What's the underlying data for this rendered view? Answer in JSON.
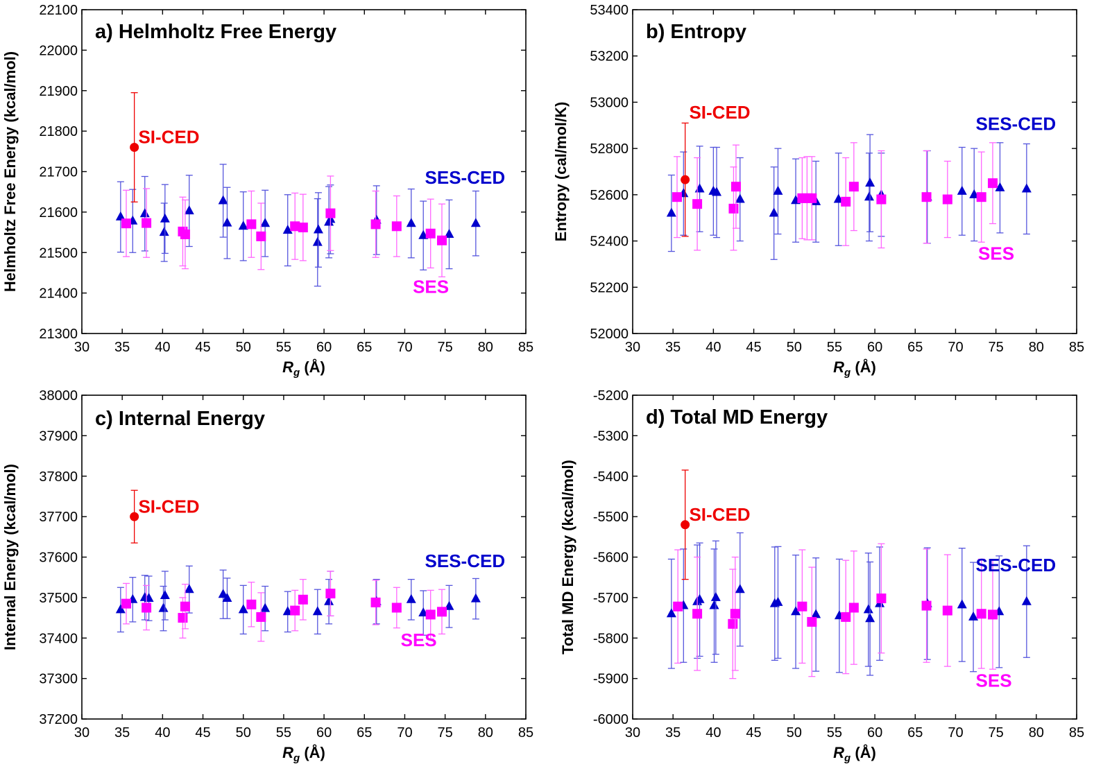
{
  "colors": {
    "sied": "#ee0000",
    "sesced": "#0000cc",
    "ses": "#ff00ff",
    "errSesced": "#5555dd",
    "errSes": "#ff66ff"
  },
  "chart_data": [
    {
      "type": "scatter",
      "title": "a) Helmholtz Free Energy",
      "xlabel_main": "R",
      "xlabel_sub": "g",
      "xlabel_rest": " (Å)",
      "ylabel": "Helmholtz Free Energy (kcal/mol)",
      "xlim": [
        30,
        85
      ],
      "ylim": [
        21300,
        22100
      ],
      "xticks": [
        30,
        35,
        40,
        45,
        50,
        55,
        60,
        65,
        70,
        75,
        80,
        85
      ],
      "yticks": [
        21300,
        21400,
        21500,
        21600,
        21700,
        21800,
        21900,
        22000,
        22100
      ],
      "annotations": [
        {
          "text": "SI-CED",
          "series": "sied",
          "x": 37,
          "y": 21770
        },
        {
          "text": "SES-CED",
          "series": "sesced",
          "x": 72.5,
          "y": 21670
        },
        {
          "text": "SES",
          "series": "ses",
          "x": 71,
          "y": 21400
        }
      ],
      "series": [
        {
          "key": "sied",
          "marker": "circle",
          "points": [
            {
              "x": 36.5,
              "y": 21760,
              "err": 135
            }
          ]
        },
        {
          "key": "sesced",
          "marker": "triangle",
          "points": [
            {
              "x": 34.8,
              "y": 21588,
              "err": 87
            },
            {
              "x": 36.3,
              "y": 21578,
              "err": 78
            },
            {
              "x": 37.8,
              "y": 21596,
              "err": 92
            },
            {
              "x": 40.2,
              "y": 21550,
              "err": 72
            },
            {
              "x": 40.3,
              "y": 21583,
              "err": 85
            },
            {
              "x": 43.3,
              "y": 21603,
              "err": 88
            },
            {
              "x": 47.5,
              "y": 21628,
              "err": 90
            },
            {
              "x": 48,
              "y": 21573,
              "err": 88
            },
            {
              "x": 50,
              "y": 21565,
              "err": 85
            },
            {
              "x": 52.7,
              "y": 21572,
              "err": 82
            },
            {
              "x": 55.5,
              "y": 21555,
              "err": 88
            },
            {
              "x": 59.2,
              "y": 21525,
              "err": 108
            },
            {
              "x": 59.3,
              "y": 21556,
              "err": 92
            },
            {
              "x": 60.6,
              "y": 21575,
              "err": 88
            },
            {
              "x": 60.8,
              "y": 21582,
              "err": 85
            },
            {
              "x": 66.5,
              "y": 21580,
              "err": 85
            },
            {
              "x": 70.8,
              "y": 21572,
              "err": 85
            },
            {
              "x": 72.3,
              "y": 21542,
              "err": 85
            },
            {
              "x": 75.5,
              "y": 21545,
              "err": 85
            },
            {
              "x": 78.8,
              "y": 21572,
              "err": 80
            }
          ]
        },
        {
          "key": "ses",
          "marker": "square",
          "points": [
            {
              "x": 35.5,
              "y": 21572,
              "err": 82
            },
            {
              "x": 38,
              "y": 21573,
              "err": 85
            },
            {
              "x": 42.5,
              "y": 21552,
              "err": 85
            },
            {
              "x": 42.8,
              "y": 21545,
              "err": 85
            },
            {
              "x": 51,
              "y": 21570,
              "err": 82
            },
            {
              "x": 52.2,
              "y": 21540,
              "err": 82
            },
            {
              "x": 56.4,
              "y": 21565,
              "err": 82
            },
            {
              "x": 57.4,
              "y": 21562,
              "err": 82
            },
            {
              "x": 60.8,
              "y": 21597,
              "err": 92
            },
            {
              "x": 66.4,
              "y": 21570,
              "err": 82
            },
            {
              "x": 69,
              "y": 21565,
              "err": 75
            },
            {
              "x": 73.2,
              "y": 21547,
              "err": 85
            },
            {
              "x": 74.6,
              "y": 21530,
              "err": 90
            }
          ]
        }
      ]
    },
    {
      "type": "scatter",
      "title": "b) Entropy",
      "xlabel_main": "R",
      "xlabel_sub": "g",
      "xlabel_rest": " (Å)",
      "ylabel": "Entropy (cal/mol/K)",
      "xlim": [
        30,
        85
      ],
      "ylim": [
        52000,
        53400
      ],
      "xticks": [
        30,
        35,
        40,
        45,
        50,
        55,
        60,
        65,
        70,
        75,
        80,
        85
      ],
      "yticks": [
        52000,
        52200,
        52400,
        52600,
        52800,
        53000,
        53200,
        53400
      ],
      "annotations": [
        {
          "text": "SI-CED",
          "series": "sied",
          "x": 37,
          "y": 52930
        },
        {
          "text": "SES-CED",
          "series": "sesced",
          "x": 72.5,
          "y": 52880
        },
        {
          "text": "SES",
          "series": "ses",
          "x": 72.8,
          "y": 52320
        }
      ],
      "series": [
        {
          "key": "sied",
          "marker": "circle",
          "points": [
            {
              "x": 36.5,
              "y": 52665,
              "err": 245
            }
          ]
        },
        {
          "key": "sesced",
          "marker": "triangle",
          "points": [
            {
              "x": 34.8,
              "y": 52520,
              "err": 165
            },
            {
              "x": 36.3,
              "y": 52605,
              "err": 180
            },
            {
              "x": 38.3,
              "y": 52625,
              "err": 185
            },
            {
              "x": 40,
              "y": 52615,
              "err": 190
            },
            {
              "x": 40.4,
              "y": 52610,
              "err": 195
            },
            {
              "x": 43.3,
              "y": 52580,
              "err": 180
            },
            {
              "x": 47.5,
              "y": 52520,
              "err": 200
            },
            {
              "x": 48,
              "y": 52615,
              "err": 185
            },
            {
              "x": 50.2,
              "y": 52575,
              "err": 180
            },
            {
              "x": 52.7,
              "y": 52570,
              "err": 175
            },
            {
              "x": 55.5,
              "y": 52580,
              "err": 200
            },
            {
              "x": 59.3,
              "y": 52590,
              "err": 190
            },
            {
              "x": 59.4,
              "y": 52650,
              "err": 210
            },
            {
              "x": 60.8,
              "y": 52600,
              "err": 180
            },
            {
              "x": 66.5,
              "y": 52590,
              "err": 200
            },
            {
              "x": 70.8,
              "y": 52615,
              "err": 190
            },
            {
              "x": 72.3,
              "y": 52600,
              "err": 200
            },
            {
              "x": 75.5,
              "y": 52630,
              "err": 195
            },
            {
              "x": 78.8,
              "y": 52625,
              "err": 195
            }
          ]
        },
        {
          "key": "ses",
          "marker": "square",
          "points": [
            {
              "x": 35.5,
              "y": 52590,
              "err": 175
            },
            {
              "x": 38,
              "y": 52560,
              "err": 200
            },
            {
              "x": 42.5,
              "y": 52540,
              "err": 180
            },
            {
              "x": 42.8,
              "y": 52635,
              "err": 180
            },
            {
              "x": 51,
              "y": 52585,
              "err": 175
            },
            {
              "x": 51.6,
              "y": 52585,
              "err": 180
            },
            {
              "x": 52.2,
              "y": 52585,
              "err": 180
            },
            {
              "x": 56.4,
              "y": 52570,
              "err": 190
            },
            {
              "x": 57.4,
              "y": 52635,
              "err": 190
            },
            {
              "x": 60.8,
              "y": 52580,
              "err": 210
            },
            {
              "x": 66.4,
              "y": 52590,
              "err": 200
            },
            {
              "x": 69,
              "y": 52580,
              "err": 165
            },
            {
              "x": 73.2,
              "y": 52590,
              "err": 195
            },
            {
              "x": 74.6,
              "y": 52650,
              "err": 175
            }
          ]
        }
      ]
    },
    {
      "type": "scatter",
      "title": "c) Internal Energy",
      "xlabel_main": "R",
      "xlabel_sub": "g",
      "xlabel_rest": " (Å)",
      "ylabel": "Internal Energy (kcal/mol)",
      "xlim": [
        30,
        85
      ],
      "ylim": [
        37200,
        38000
      ],
      "xticks": [
        30,
        35,
        40,
        45,
        50,
        55,
        60,
        65,
        70,
        75,
        80,
        85
      ],
      "yticks": [
        37200,
        37300,
        37400,
        37500,
        37600,
        37700,
        37800,
        37900,
        38000
      ],
      "annotations": [
        {
          "text": "SI-CED",
          "series": "sied",
          "x": 37,
          "y": 37710
        },
        {
          "text": "SES-CED",
          "series": "sesced",
          "x": 72.5,
          "y": 37575
        },
        {
          "text": "SES",
          "series": "ses",
          "x": 69.5,
          "y": 37380
        }
      ],
      "series": [
        {
          "key": "sied",
          "marker": "circle",
          "points": [
            {
              "x": 36.5,
              "y": 37700,
              "err": 65
            }
          ]
        },
        {
          "key": "sesced",
          "marker": "triangle",
          "points": [
            {
              "x": 34.8,
              "y": 37470,
              "err": 55
            },
            {
              "x": 36.3,
              "y": 37495,
              "err": 55
            },
            {
              "x": 37.8,
              "y": 37500,
              "err": 55
            },
            {
              "x": 38.3,
              "y": 37498,
              "err": 55
            },
            {
              "x": 40.1,
              "y": 37473,
              "err": 55
            },
            {
              "x": 40.3,
              "y": 37505,
              "err": 60
            },
            {
              "x": 43.3,
              "y": 37520,
              "err": 58
            },
            {
              "x": 47.5,
              "y": 37508,
              "err": 60
            },
            {
              "x": 48,
              "y": 37498,
              "err": 50
            },
            {
              "x": 50,
              "y": 37470,
              "err": 60
            },
            {
              "x": 52.7,
              "y": 37473,
              "err": 55
            },
            {
              "x": 55.5,
              "y": 37465,
              "err": 50
            },
            {
              "x": 59.2,
              "y": 37465,
              "err": 55
            },
            {
              "x": 60.6,
              "y": 37490,
              "err": 55
            },
            {
              "x": 60.8,
              "y": 37510,
              "err": 55
            },
            {
              "x": 66.5,
              "y": 37490,
              "err": 55
            },
            {
              "x": 70.8,
              "y": 37495,
              "err": 50
            },
            {
              "x": 72.3,
              "y": 37462,
              "err": 55
            },
            {
              "x": 75.5,
              "y": 37478,
              "err": 52
            },
            {
              "x": 78.8,
              "y": 37497,
              "err": 50
            }
          ]
        },
        {
          "key": "ses",
          "marker": "square",
          "points": [
            {
              "x": 35.5,
              "y": 37485,
              "err": 50
            },
            {
              "x": 38,
              "y": 37475,
              "err": 55
            },
            {
              "x": 42.5,
              "y": 37450,
              "err": 50
            },
            {
              "x": 42.8,
              "y": 37478,
              "err": 55
            },
            {
              "x": 51,
              "y": 37483,
              "err": 55
            },
            {
              "x": 52.2,
              "y": 37452,
              "err": 60
            },
            {
              "x": 56.4,
              "y": 37468,
              "err": 50
            },
            {
              "x": 57.4,
              "y": 37495,
              "err": 50
            },
            {
              "x": 60.8,
              "y": 37510,
              "err": 55
            },
            {
              "x": 66.4,
              "y": 37488,
              "err": 55
            },
            {
              "x": 69,
              "y": 37475,
              "err": 50
            },
            {
              "x": 73.2,
              "y": 37458,
              "err": 60
            },
            {
              "x": 74.6,
              "y": 37465,
              "err": 55
            }
          ]
        }
      ]
    },
    {
      "type": "scatter",
      "title": "d) Total MD Energy",
      "xlabel_main": "R",
      "xlabel_sub": "g",
      "xlabel_rest": " (Å)",
      "ylabel": "Total MD Energy (kcal/mol)",
      "xlim": [
        30,
        85
      ],
      "ylim": [
        -6000,
        -5200
      ],
      "xticks": [
        30,
        35,
        40,
        45,
        50,
        55,
        60,
        65,
        70,
        75,
        80,
        85
      ],
      "yticks": [
        -6000,
        -5900,
        -5800,
        -5700,
        -5600,
        -5500,
        -5400,
        -5300,
        -5200
      ],
      "annotations": [
        {
          "text": "SI-CED",
          "series": "sied",
          "x": 37,
          "y": -5510
        },
        {
          "text": "SES-CED",
          "series": "sesced",
          "x": 72.5,
          "y": -5635
        },
        {
          "text": "SES",
          "series": "ses",
          "x": 72.5,
          "y": -5920
        }
      ],
      "series": [
        {
          "key": "sied",
          "marker": "circle",
          "points": [
            {
              "x": 36.5,
              "y": -5520,
              "err": 135
            }
          ]
        },
        {
          "key": "sesced",
          "marker": "triangle",
          "points": [
            {
              "x": 34.8,
              "y": -5740,
              "err": 135
            },
            {
              "x": 36.3,
              "y": -5720,
              "err": 140
            },
            {
              "x": 38,
              "y": -5710,
              "err": 140
            },
            {
              "x": 38.3,
              "y": -5705,
              "err": 140
            },
            {
              "x": 40.1,
              "y": -5720,
              "err": 140
            },
            {
              "x": 40.3,
              "y": -5700,
              "err": 140
            },
            {
              "x": 43.3,
              "y": -5680,
              "err": 140
            },
            {
              "x": 47.6,
              "y": -5715,
              "err": 140
            },
            {
              "x": 48,
              "y": -5712,
              "err": 138
            },
            {
              "x": 50.2,
              "y": -5735,
              "err": 140
            },
            {
              "x": 52.7,
              "y": -5742,
              "err": 140
            },
            {
              "x": 55.6,
              "y": -5745,
              "err": 140
            },
            {
              "x": 59.2,
              "y": -5730,
              "err": 140
            },
            {
              "x": 59.4,
              "y": -5752,
              "err": 140
            },
            {
              "x": 60.6,
              "y": -5715,
              "err": 140
            },
            {
              "x": 66.5,
              "y": -5715,
              "err": 138
            },
            {
              "x": 70.8,
              "y": -5718,
              "err": 140
            },
            {
              "x": 72.2,
              "y": -5748,
              "err": 135
            },
            {
              "x": 75.4,
              "y": -5735,
              "err": 138
            },
            {
              "x": 78.8,
              "y": -5710,
              "err": 138
            }
          ]
        },
        {
          "key": "ses",
          "marker": "square",
          "points": [
            {
              "x": 35.6,
              "y": -5722,
              "err": 140
            },
            {
              "x": 38,
              "y": -5740,
              "err": 140
            },
            {
              "x": 42.4,
              "y": -5765,
              "err": 135
            },
            {
              "x": 42.7,
              "y": -5740,
              "err": 140
            },
            {
              "x": 51,
              "y": -5722,
              "err": 140
            },
            {
              "x": 52.2,
              "y": -5760,
              "err": 135
            },
            {
              "x": 56.4,
              "y": -5748,
              "err": 140
            },
            {
              "x": 57.4,
              "y": -5725,
              "err": 140
            },
            {
              "x": 60.8,
              "y": -5702,
              "err": 135
            },
            {
              "x": 66.4,
              "y": -5720,
              "err": 140
            },
            {
              "x": 69,
              "y": -5732,
              "err": 138
            },
            {
              "x": 73.2,
              "y": -5740,
              "err": 135
            },
            {
              "x": 74.6,
              "y": -5742,
              "err": 135
            }
          ]
        }
      ]
    }
  ]
}
